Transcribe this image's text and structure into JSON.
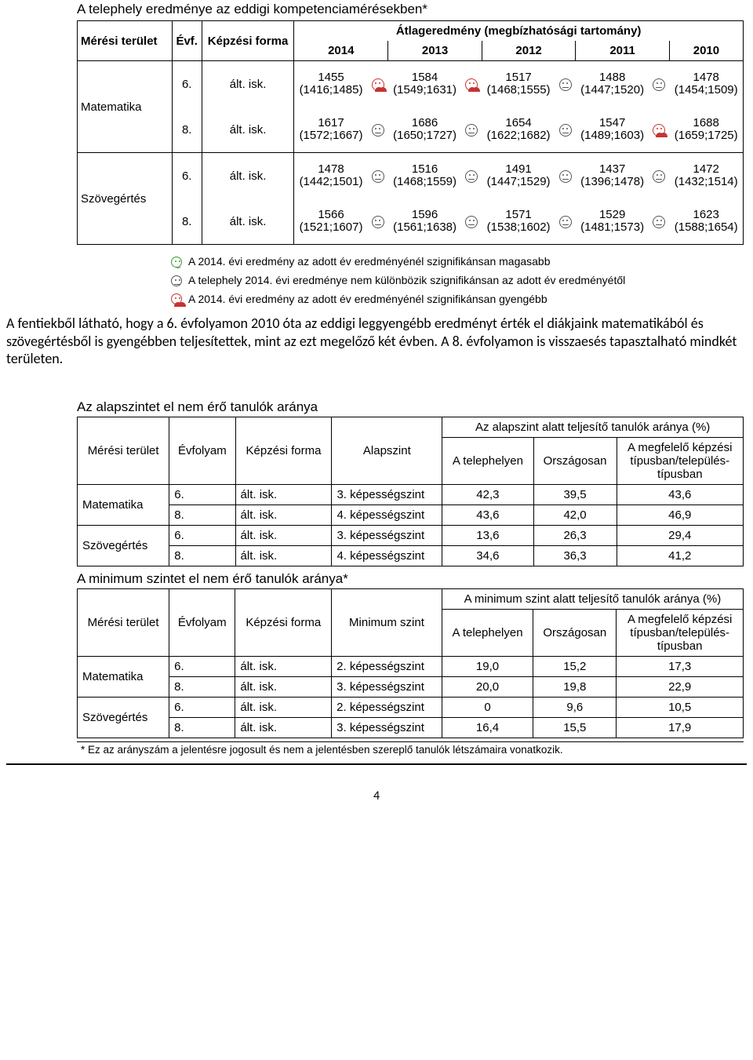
{
  "table1": {
    "title": "A telephely eredménye az eddigi kompetenciamérésekben*",
    "col_subject": "Mérési terület",
    "col_grade": "Évf.",
    "col_form": "Képzési forma",
    "col_group": "Átlageredmény (megbízhatósági tartomány)",
    "years": [
      "2014",
      "2013",
      "2012",
      "2011",
      "2010"
    ],
    "subjects": [
      {
        "name": "Matematika",
        "rows": [
          {
            "grade": "6.",
            "form": "ált. isk.",
            "cells": [
              {
                "v": "1455",
                "ci": "(1416;1485)",
                "icon": "sad",
                "color": "red"
              },
              {
                "v": "1584",
                "ci": "(1549;1631)",
                "icon": "sad",
                "color": "red"
              },
              {
                "v": "1517",
                "ci": "(1468;1555)",
                "icon": "neutral",
                "color": "grey"
              },
              {
                "v": "1488",
                "ci": "(1447;1520)",
                "icon": "neutral",
                "color": "grey"
              },
              {
                "v": "1478",
                "ci": "(1454;1509)",
                "icon": null
              }
            ]
          },
          {
            "grade": "8.",
            "form": "ált. isk.",
            "cells": [
              {
                "v": "1617",
                "ci": "(1572;1667)",
                "icon": "neutral",
                "color": "grey"
              },
              {
                "v": "1686",
                "ci": "(1650;1727)",
                "icon": "neutral",
                "color": "grey"
              },
              {
                "v": "1654",
                "ci": "(1622;1682)",
                "icon": "neutral",
                "color": "grey"
              },
              {
                "v": "1547",
                "ci": "(1489;1603)",
                "icon": "sad",
                "color": "red"
              },
              {
                "v": "1688",
                "ci": "(1659;1725)",
                "icon": null
              }
            ]
          }
        ]
      },
      {
        "name": "Szövegértés",
        "rows": [
          {
            "grade": "6.",
            "form": "ált. isk.",
            "cells": [
              {
                "v": "1478",
                "ci": "(1442;1501)",
                "icon": "neutral",
                "color": "grey"
              },
              {
                "v": "1516",
                "ci": "(1468;1559)",
                "icon": "neutral",
                "color": "grey"
              },
              {
                "v": "1491",
                "ci": "(1447;1529)",
                "icon": "neutral",
                "color": "grey"
              },
              {
                "v": "1437",
                "ci": "(1396;1478)",
                "icon": "neutral",
                "color": "grey"
              },
              {
                "v": "1472",
                "ci": "(1432;1514)",
                "icon": null
              }
            ]
          },
          {
            "grade": "8.",
            "form": "ált. isk.",
            "cells": [
              {
                "v": "1566",
                "ci": "(1521;1607)",
                "icon": "neutral",
                "color": "grey"
              },
              {
                "v": "1596",
                "ci": "(1561;1638)",
                "icon": "neutral",
                "color": "grey"
              },
              {
                "v": "1571",
                "ci": "(1538;1602)",
                "icon": "neutral",
                "color": "grey"
              },
              {
                "v": "1529",
                "ci": "(1481;1573)",
                "icon": "neutral",
                "color": "grey"
              },
              {
                "v": "1623",
                "ci": "(1588;1654)",
                "icon": null
              }
            ]
          }
        ]
      }
    ]
  },
  "legend": {
    "happy": "A 2014. évi eredmény az adott év eredményénél szignifikánsan magasabb",
    "neutral": "A telephely 2014. évi eredménye nem különbözik szignifikánsan az adott év eredményétől",
    "sad": "A 2014. évi eredmény az adott év eredményénél szignifikánsan gyengébb"
  },
  "paragraph": "A fentiekből látható, hogy a 6. évfolyamon 2010 óta az eddigi leggyengébb eredményt érték el diákjaink matematikából és szövegértésből is gyengébben teljesítettek, mint az ezt megelőző két évben. A 8. évfolyamon is visszaesés tapasztalható mindkét területen.",
  "table2": {
    "title": "Az alapszintet el nem érő tanulók aránya",
    "col_subject": "Mérési terület",
    "col_grade": "Évfolyam",
    "col_form": "Képzési forma",
    "col_level": "Alapszint",
    "group": "Az alapszint alatt teljesítő tanulók aránya (%)",
    "subcols": [
      "A telephelyen",
      "Országosan",
      "A megfelelő képzési típusban/település-típusban"
    ],
    "subjects": [
      {
        "name": "Matematika",
        "rows": [
          {
            "grade": "6.",
            "form": "ált. isk.",
            "level": "3. képességszint",
            "vals": [
              "42,3",
              "39,5",
              "43,6"
            ]
          },
          {
            "grade": "8.",
            "form": "ált. isk.",
            "level": "4. képességszint",
            "vals": [
              "43,6",
              "42,0",
              "46,9"
            ]
          }
        ]
      },
      {
        "name": "Szövegértés",
        "rows": [
          {
            "grade": "6.",
            "form": "ált. isk.",
            "level": "3. képességszint",
            "vals": [
              "13,6",
              "26,3",
              "29,4"
            ]
          },
          {
            "grade": "8.",
            "form": "ált. isk.",
            "level": "4. képességszint",
            "vals": [
              "34,6",
              "36,3",
              "41,2"
            ]
          }
        ]
      }
    ]
  },
  "table3": {
    "title": "A minimum szintet el nem érő tanulók aránya*",
    "col_subject": "Mérési terület",
    "col_grade": "Évfolyam",
    "col_form": "Képzési forma",
    "col_level": "Minimum szint",
    "group": "A minimum szint alatt teljesítő tanulók aránya (%)",
    "subcols": [
      "A telephelyen",
      "Országosan",
      "A megfelelő képzési típusban/település-típusban"
    ],
    "subjects": [
      {
        "name": "Matematika",
        "rows": [
          {
            "grade": "6.",
            "form": "ált. isk.",
            "level": "2. képességszint",
            "vals": [
              "19,0",
              "15,2",
              "17,3"
            ]
          },
          {
            "grade": "8.",
            "form": "ált. isk.",
            "level": "3. képességszint",
            "vals": [
              "20,0",
              "19,8",
              "22,9"
            ]
          }
        ]
      },
      {
        "name": "Szövegértés",
        "rows": [
          {
            "grade": "6.",
            "form": "ált. isk.",
            "level": "2. képességszint",
            "vals": [
              "0",
              "9,6",
              "10,5"
            ]
          },
          {
            "grade": "8.",
            "form": "ált. isk.",
            "level": "3. képességszint",
            "vals": [
              "16,4",
              "15,5",
              "17,9"
            ]
          }
        ]
      }
    ]
  },
  "footnote": "* Ez az arányszám a jelentésre jogosult és nem a jelentésben szereplő tanulók létszámaira vonatkozik.",
  "page_number": "4",
  "colors": {
    "grey": "#555555",
    "red": "#c83232",
    "green": "#3a9a3a",
    "border": "#000000",
    "bg": "#ffffff"
  }
}
